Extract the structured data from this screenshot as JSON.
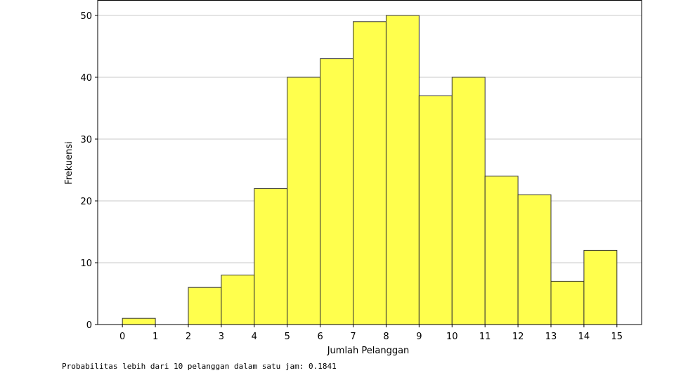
{
  "chart_data": {
    "type": "bar",
    "bins": [
      {
        "from": 0,
        "to": 1,
        "value": 1
      },
      {
        "from": 1,
        "to": 2,
        "value": 0
      },
      {
        "from": 2,
        "to": 3,
        "value": 6
      },
      {
        "from": 3,
        "to": 4,
        "value": 8
      },
      {
        "from": 4,
        "to": 5,
        "value": 22
      },
      {
        "from": 5,
        "to": 6,
        "value": 40
      },
      {
        "from": 6,
        "to": 7,
        "value": 43
      },
      {
        "from": 7,
        "to": 8,
        "value": 49
      },
      {
        "from": 8,
        "to": 9,
        "value": 50
      },
      {
        "from": 9,
        "to": 10,
        "value": 37
      },
      {
        "from": 10,
        "to": 11,
        "value": 40
      },
      {
        "from": 11,
        "to": 12,
        "value": 24
      },
      {
        "from": 12,
        "to": 13,
        "value": 21
      },
      {
        "from": 13,
        "to": 14,
        "value": 7
      },
      {
        "from": 14,
        "to": 15,
        "value": 12
      }
    ],
    "xlabel": "Jumlah Pelanggan",
    "ylabel": "Frekuensi",
    "xticks": [
      0,
      1,
      2,
      3,
      4,
      5,
      6,
      7,
      8,
      9,
      10,
      11,
      12,
      13,
      14,
      15
    ],
    "yticks": [
      0,
      10,
      20,
      30,
      40,
      50
    ],
    "xlim": [
      -0.75,
      15.75
    ],
    "ylim": [
      0,
      52.5
    ],
    "grid": "y",
    "bar_color": "#ffff4d",
    "edge_color": "#333333"
  },
  "output_text": "Probabilitas lebih dari 10 pelanggan dalam satu jam: 0.1841"
}
